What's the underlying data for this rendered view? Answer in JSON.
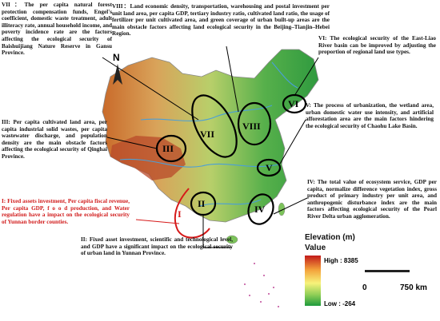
{
  "annotations": {
    "vii": "VII：The per capita natural forest protection compensation funds, Engel's coefficient, domestic waste treatment, adult illiteracy rate, annual household income, and poverty incidence rate are the factors affecting the ecological security of Baishuijiang Nature Reserve in Gansu Province.",
    "viii": "VIII：Land economic density, transportation, warehousing and postal investment per unit land area, per capita GDP, tertiary industry ratio, cultivated land ratio, the usage of fertilizer per unit cultivated area, and green coverage of urban built-up areas are the main obstacle factors affecting land ecological security in the Beijing–Tianjin–Hebei Region.",
    "vi": "VI: The ecological security of the East-Liao River basin can be improved by adjusting the proportion of regional land use types.",
    "v": "V: The process of urbanization, the wetland area, urban domestic water use intensity, and artificial afforestation area are the main factors hindering the ecological security of Chaohu Lake Basin.",
    "iii": "III: Per capita cultivated land area, per capita industrial solid wastes, per capita wastewater discharge, and population density are the main obstacle factors affecting the ecological security of Qinghai Province.",
    "iv": "IV: The total value of ecosystem service, GDP per capita, normalize difference vegetation index, gross product of primary industry per unit area, and anthropogenic disturbance index are the main factors affecting ecological security of the Pearl River Delta urban agglomeration.",
    "i": "I: Fixed assets investment, Per capita fiscal revenue, Per capita GDP, f o o d production, and Water regulation have a impact on the ecological security of Yunnan border counties.",
    "ii": "II: Fixed asset investment, scientific and technological level, and GDP have a significant impact on the ecological security of urban land in Yunnan Province."
  },
  "regions": {
    "i": "I",
    "ii": "II",
    "iii": "III",
    "iv": "IV",
    "v": "V",
    "vi": "VI",
    "vii": "VII",
    "viii": "VIII"
  },
  "compass": "N",
  "legend": {
    "title": "Elevation (m)",
    "subtitle": "Value",
    "high": "High : 8385",
    "low": "Low : -264",
    "colors": [
      "#c21a1a",
      "#f3a03a",
      "#f7f27a",
      "#8fce57",
      "#1f9a3c"
    ]
  },
  "scale": {
    "start": "0",
    "end": "750 km"
  }
}
